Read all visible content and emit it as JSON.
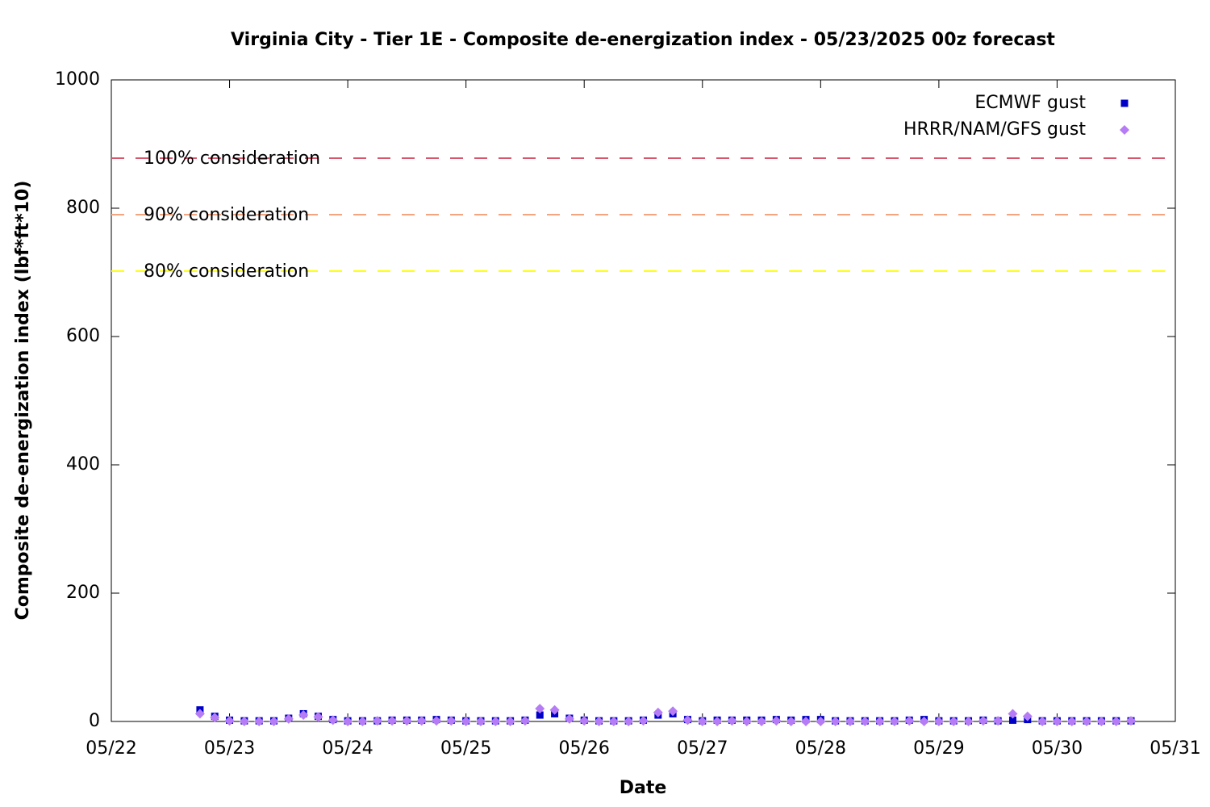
{
  "chart_data": {
    "type": "scatter",
    "title": "Virginia City - Tier 1E - Composite de-energization index - 05/23/2025 00z forecast",
    "x_label": "Date",
    "y_label": "Composite de-energization index (lbf*ft*10)",
    "xlim": [
      0,
      9
    ],
    "xticks": [
      {
        "value": 0,
        "label": "05/22"
      },
      {
        "value": 1,
        "label": "05/23"
      },
      {
        "value": 2,
        "label": "05/24"
      },
      {
        "value": 3,
        "label": "05/25"
      },
      {
        "value": 4,
        "label": "05/26"
      },
      {
        "value": 5,
        "label": "05/27"
      },
      {
        "value": 6,
        "label": "05/28"
      },
      {
        "value": 7,
        "label": "05/29"
      },
      {
        "value": 8,
        "label": "05/30"
      },
      {
        "value": 9,
        "label": "05/31"
      }
    ],
    "ylim": [
      0,
      1000
    ],
    "yticks": [
      0,
      200,
      400,
      600,
      800,
      1000
    ],
    "legend": "upper right",
    "x": [
      0.75,
      0.875,
      1.0,
      1.125,
      1.25,
      1.375,
      1.5,
      1.625,
      1.75,
      1.875,
      2.0,
      2.125,
      2.25,
      2.375,
      2.5,
      2.625,
      2.75,
      2.875,
      3.0,
      3.125,
      3.25,
      3.375,
      3.5,
      3.625,
      3.75,
      3.875,
      4.0,
      4.125,
      4.25,
      4.375,
      4.5,
      4.625,
      4.75,
      4.875,
      5.0,
      5.125,
      5.25,
      5.375,
      5.5,
      5.625,
      5.75,
      5.875,
      6.0,
      6.125,
      6.25,
      6.375,
      6.5,
      6.625,
      6.75,
      6.875,
      7.0,
      7.125,
      7.25,
      7.375,
      7.5,
      7.625,
      7.75,
      7.875,
      8.0,
      8.125,
      8.25,
      8.375,
      8.5,
      8.625
    ],
    "series": [
      {
        "name": "ECMWF gust",
        "color": "#0000c8",
        "marker": "square",
        "values": [
          18,
          8,
          2,
          1,
          1,
          1,
          5,
          12,
          8,
          3,
          1,
          1,
          1,
          2,
          2,
          2,
          3,
          2,
          1,
          1,
          1,
          1,
          2,
          10,
          12,
          5,
          2,
          1,
          1,
          1,
          2,
          10,
          12,
          3,
          1,
          2,
          2,
          2,
          2,
          3,
          2,
          3,
          3,
          1,
          1,
          1,
          1,
          1,
          2,
          3,
          1,
          1,
          1,
          2,
          1,
          2,
          3,
          1,
          1,
          1,
          1,
          1,
          1,
          1
        ]
      },
      {
        "name": "HRRR/NAM/GFS gust",
        "color": "#b57cf5",
        "marker": "diamond",
        "values": [
          12,
          6,
          1,
          0,
          0,
          0,
          4,
          10,
          7,
          2,
          0,
          0,
          1,
          1,
          1,
          1,
          1,
          1,
          0,
          0,
          0,
          0,
          1,
          20,
          18,
          4,
          1,
          0,
          0,
          0,
          1,
          14,
          16,
          2,
          0,
          0,
          1,
          0,
          0,
          1,
          0,
          0,
          0,
          0,
          0,
          0,
          0,
          0,
          1,
          0,
          0,
          0,
          0,
          1,
          1,
          12,
          8,
          0,
          0,
          0,
          0,
          0,
          0,
          1
        ]
      }
    ],
    "reference_lines": [
      {
        "label": "100% consideration",
        "value": 878,
        "color": "#d8566c"
      },
      {
        "label": "90% consideration",
        "value": 790,
        "color": "#f4a57f"
      },
      {
        "label": "80% consideration",
        "value": 702,
        "color": "#ffff00"
      }
    ]
  }
}
